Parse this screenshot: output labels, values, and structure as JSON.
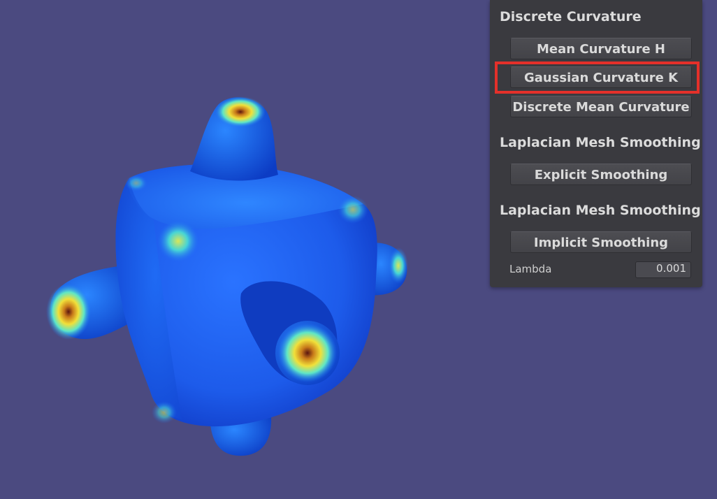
{
  "panel": {
    "sections": [
      {
        "header": "Discrete Curvature"
      },
      {
        "header": "Laplacian Mesh Smoothing"
      },
      {
        "header": "Laplacian Mesh Smoothing"
      }
    ],
    "buttons": {
      "mean_curvature": "Mean Curvature H",
      "gaussian_curvature": "Gaussian Curvature K",
      "discrete_mean_curvature": "Discrete Mean Curvature",
      "explicit_smoothing": "Explicit Smoothing",
      "implicit_smoothing": "Implicit Smoothing"
    },
    "lambda": {
      "label": "Lambda",
      "value": "0.001"
    }
  },
  "colors": {
    "background": "#4b4a80",
    "panel": "#3a3a3f",
    "highlight": "#e4302a",
    "mesh_base": "#1f5ce0",
    "mesh_high_curvature": "#f0e23a"
  },
  "annotation": {
    "highlighted_button": "gaussian_curvature"
  }
}
